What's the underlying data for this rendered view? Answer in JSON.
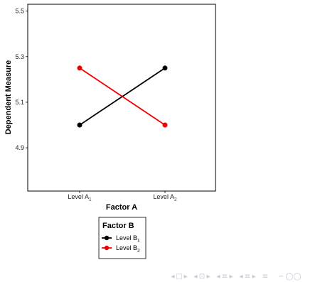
{
  "chart_data": {
    "type": "line",
    "xlabel": "Factor A",
    "ylabel": "Dependent Measure",
    "categories": [
      {
        "base": "Level A",
        "sub": "1"
      },
      {
        "base": "Level A",
        "sub": "2"
      }
    ],
    "yticks": [
      4.9,
      5.1,
      5.3,
      5.5
    ],
    "ylim": [
      4.71,
      5.53
    ],
    "grid": false,
    "legend": {
      "title": "Factor B",
      "placement": "bottom"
    },
    "series": [
      {
        "base": "Level B",
        "sub": "1",
        "color": "#000000",
        "values": [
          5.0,
          5.25
        ]
      },
      {
        "base": "Level B",
        "sub": "2",
        "color": "#ee0000",
        "values": [
          5.25,
          5.0
        ]
      }
    ]
  },
  "footer_nav": {
    "glyphs": [
      "◂",
      "□",
      "▸",
      "◂",
      "⊡",
      "▸",
      "◂",
      "≡",
      "▸",
      "◂",
      "≡",
      "▸",
      "≡",
      "∽",
      "◯",
      "◯"
    ]
  }
}
